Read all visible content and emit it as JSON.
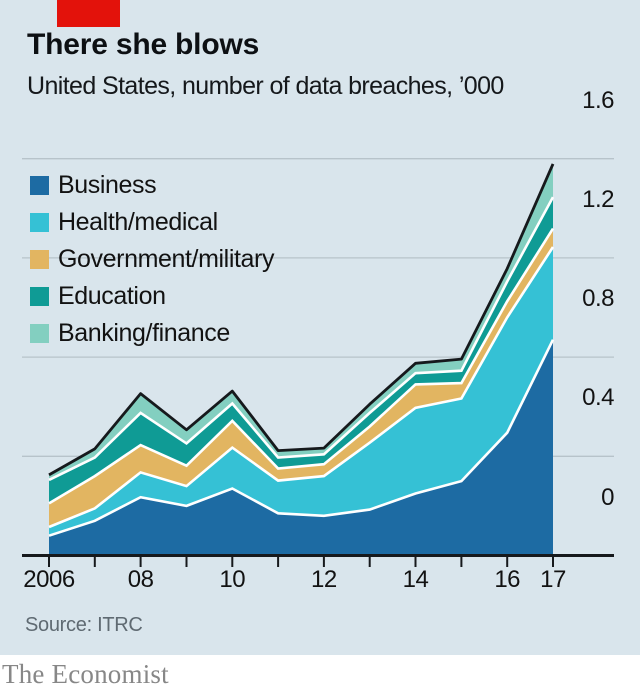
{
  "header": {
    "title": "There she blows",
    "subtitle": "United States, number of data breaches, ’000"
  },
  "colors": {
    "background": "#d9e5ec",
    "accent_red": "#e3120b",
    "grid": "#b7c3ca",
    "axis": "#16191c",
    "outline": "#16191c",
    "separator": "#ffffff",
    "text": "#121212",
    "muted_text": "#5f6a72",
    "brand_gray": "#878787"
  },
  "chart_data": {
    "type": "area",
    "stacked": true,
    "title": "There she blows",
    "subtitle": "United States, number of data breaches, ’000",
    "xlabel": "",
    "ylabel": "number of data breaches, '000",
    "x": [
      2006,
      2007,
      2008,
      2009,
      2010,
      2011,
      2012,
      2013,
      2014,
      2015,
      2016,
      2017
    ],
    "ylim": [
      0,
      1.6
    ],
    "grid": true,
    "legend_position": "top-left",
    "series": [
      {
        "name": "Business",
        "color": "#1d6ba3",
        "values": [
          0.08,
          0.14,
          0.235,
          0.2,
          0.27,
          0.17,
          0.16,
          0.185,
          0.25,
          0.3,
          0.495,
          0.87
        ]
      },
      {
        "name": "Health/medical",
        "color": "#35c1d5",
        "values": [
          0.035,
          0.05,
          0.1,
          0.08,
          0.165,
          0.132,
          0.16,
          0.27,
          0.345,
          0.333,
          0.465,
          0.374
        ]
      },
      {
        "name": "Government/military",
        "color": "#e2b561",
        "values": [
          0.095,
          0.13,
          0.11,
          0.082,
          0.108,
          0.049,
          0.048,
          0.065,
          0.095,
          0.062,
          0.065,
          0.074
        ]
      },
      {
        "name": "Education",
        "color": "#0f9b95",
        "values": [
          0.095,
          0.075,
          0.13,
          0.09,
          0.07,
          0.044,
          0.04,
          0.055,
          0.045,
          0.05,
          0.08,
          0.127
        ]
      },
      {
        "name": "Banking/finance",
        "color": "#83cfc0",
        "values": [
          0.02,
          0.035,
          0.078,
          0.055,
          0.05,
          0.028,
          0.025,
          0.035,
          0.04,
          0.047,
          0.052,
          0.134
        ]
      }
    ],
    "x_ticks": [
      {
        "label": "2006",
        "year": 2006
      },
      {
        "label": "08",
        "year": 2008
      },
      {
        "label": "10",
        "year": 2010
      },
      {
        "label": "12",
        "year": 2012
      },
      {
        "label": "14",
        "year": 2014
      },
      {
        "label": "16",
        "year": 2016
      },
      {
        "label": "17",
        "year": 2017
      }
    ],
    "y_ticks": [
      {
        "label": "0",
        "value": 0
      },
      {
        "label": "0.4",
        "value": 0.4
      },
      {
        "label": "0.8",
        "value": 0.8
      },
      {
        "label": "1.2",
        "value": 1.2
      },
      {
        "label": "1.6",
        "value": 1.6
      }
    ]
  },
  "source": {
    "label": "Source: ITRC"
  },
  "footer": {
    "brand": "The Economist"
  }
}
